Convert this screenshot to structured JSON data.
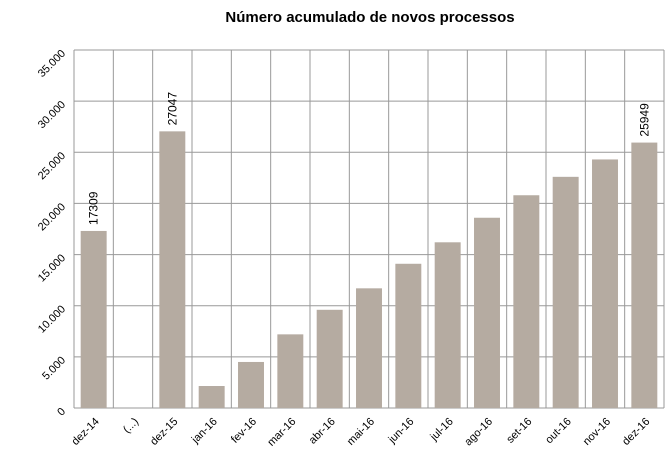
{
  "chart_data": {
    "type": "bar",
    "title": "Número acumulado de novos processos",
    "categories": [
      "dez-14",
      "(...)",
      "dez-15",
      "jan-16",
      "fev-16",
      "mar-16",
      "abr-16",
      "mai-16",
      "jun-16",
      "jul-16",
      "ago-16",
      "set-16",
      "out-16",
      "nov-16",
      "dez-16"
    ],
    "values": [
      17309,
      null,
      27047,
      2150,
      4500,
      7200,
      9600,
      11700,
      14100,
      16200,
      18600,
      20800,
      22600,
      24300,
      25949
    ],
    "value_labels": [
      "17309",
      null,
      "27047",
      null,
      null,
      null,
      null,
      null,
      null,
      null,
      null,
      null,
      null,
      null,
      "25949"
    ],
    "color": "#b5aba1",
    "ylim": [
      0,
      35000
    ],
    "yticks": [
      0,
      {
        "value": 5000,
        "label": "5.000"
      },
      {
        "value": 10000,
        "label": "10.000"
      },
      {
        "value": 15000,
        "label": "15.000"
      },
      {
        "value": 20000,
        "label": "20.000"
      },
      {
        "value": 25000,
        "label": "25.000"
      },
      {
        "value": 30000,
        "label": "30.000"
      },
      {
        "value": 35000,
        "label": "35.000"
      }
    ],
    "grid": true
  }
}
